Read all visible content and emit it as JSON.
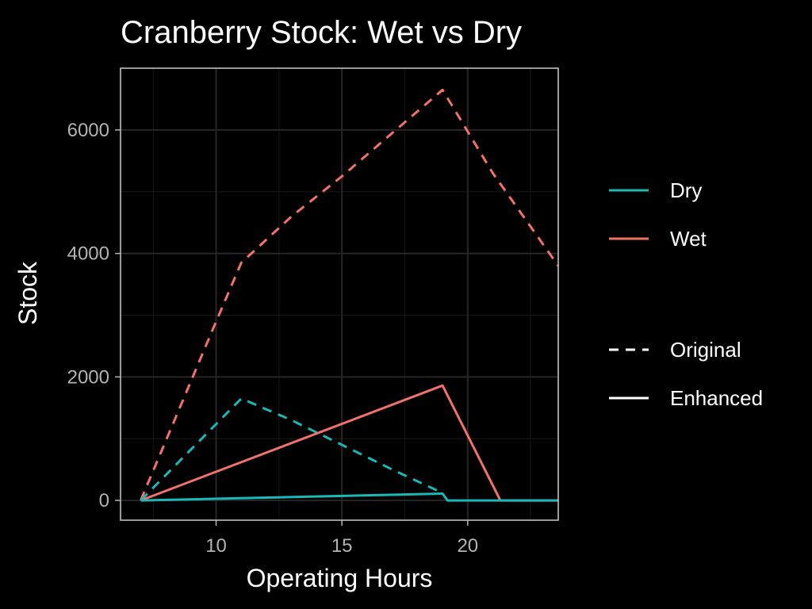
{
  "chart_data": {
    "type": "line",
    "title": "Cranberry Stock: Wet vs Dry",
    "xlabel": "Operating Hours",
    "ylabel": "Stock",
    "xlim": [
      6.2,
      23.6
    ],
    "ylim": [
      -320,
      7000
    ],
    "x_ticks": [
      10,
      15,
      20
    ],
    "x_tick_labels": [
      "10",
      "15",
      "20"
    ],
    "y_ticks": [
      0,
      2000,
      4000,
      6000
    ],
    "y_tick_labels": [
      "0",
      "2000",
      "4000",
      "6000"
    ],
    "x_minor_ticks": [
      7.5,
      12.5,
      17.5,
      22.5
    ],
    "y_minor_ticks": [
      1000,
      3000,
      5000
    ],
    "grid": true,
    "legend_position": "right",
    "colors": {
      "background": "#000000",
      "panel_border": "#cccccc",
      "grid_major": "#262626",
      "grid_minor": "#141414",
      "dry": "#1ab8b8",
      "wet": "#f07268",
      "legend_key": "#ffffff"
    },
    "legend": {
      "color_entries": [
        {
          "label": "Dry",
          "color": "#1ab8b8"
        },
        {
          "label": "Wet",
          "color": "#f07268"
        }
      ],
      "linetype_entries": [
        {
          "label": "Original",
          "dash": "dashed"
        },
        {
          "label": "Enhanced",
          "dash": "solid"
        }
      ]
    },
    "series": [
      {
        "group": "Wet",
        "type": "Original",
        "color": "#f07268",
        "dashed": true,
        "points": [
          [
            7,
            0
          ],
          [
            10,
            2900
          ],
          [
            11,
            3850
          ],
          [
            13,
            4600
          ],
          [
            15,
            5250
          ],
          [
            17,
            5950
          ],
          [
            19,
            6650
          ],
          [
            21,
            5300
          ],
          [
            23.6,
            3800
          ]
        ]
      },
      {
        "group": "Dry",
        "type": "Original",
        "color": "#1ab8b8",
        "dashed": true,
        "points": [
          [
            7,
            0
          ],
          [
            11,
            1650
          ],
          [
            13,
            1300
          ],
          [
            15,
            900
          ],
          [
            17,
            500
          ],
          [
            19,
            120
          ]
        ]
      },
      {
        "group": "Wet",
        "type": "Enhanced",
        "color": "#f07268",
        "dashed": false,
        "points": [
          [
            7,
            0
          ],
          [
            19,
            1860
          ],
          [
            21.3,
            0
          ],
          [
            23.6,
            0
          ]
        ]
      },
      {
        "group": "Dry",
        "type": "Enhanced",
        "color": "#1ab8b8",
        "dashed": false,
        "points": [
          [
            7,
            0
          ],
          [
            19,
            110
          ],
          [
            19.2,
            0
          ],
          [
            23.6,
            0
          ]
        ]
      }
    ]
  }
}
